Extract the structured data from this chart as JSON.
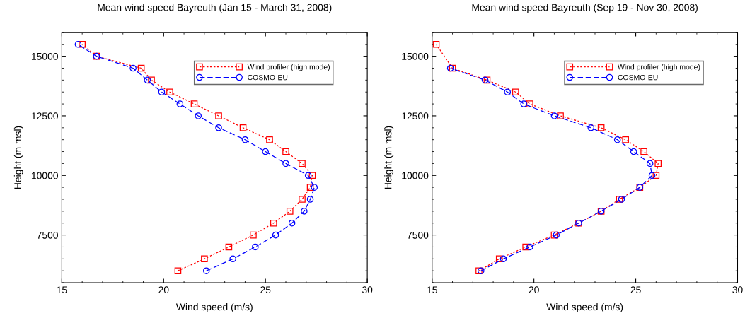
{
  "chart_data": [
    {
      "type": "line",
      "title": "Mean wind speed Bayreuth (Jan 15 - March 31, 2008)",
      "xlabel": "Wind speed (m/s)",
      "ylabel": "Height (m msl)",
      "xlim": [
        15,
        30
      ],
      "xticks": [
        15,
        20,
        25,
        30
      ],
      "ylim": [
        5500,
        16000
      ],
      "yticks": [
        7500,
        10000,
        12500,
        15000
      ],
      "grid": false,
      "legend": "top right",
      "series": [
        {
          "name": "Wind profiler (high mode)",
          "color": "#ff0000",
          "marker": "square",
          "line_style": "dotted",
          "x": [
            20.7,
            22.0,
            23.2,
            24.4,
            25.4,
            26.2,
            26.8,
            27.2,
            27.3,
            26.8,
            26.0,
            25.2,
            23.9,
            22.7,
            21.5,
            20.3,
            19.4,
            18.9,
            16.7,
            16.0
          ],
          "values": [
            6000,
            6500,
            7000,
            7500,
            8000,
            8500,
            9000,
            9500,
            10000,
            10500,
            11000,
            11500,
            12000,
            12500,
            13000,
            13500,
            14000,
            14500,
            15000,
            15500
          ]
        },
        {
          "name": "COSMO-EU",
          "color": "#0000ff",
          "marker": "circle",
          "line_style": "dashed",
          "x": [
            22.1,
            23.4,
            24.5,
            25.5,
            26.3,
            26.9,
            27.2,
            27.4,
            27.1,
            26.0,
            25.0,
            24.0,
            22.7,
            21.7,
            20.8,
            19.9,
            19.2,
            18.5,
            16.7,
            15.8
          ],
          "values": [
            6000,
            6500,
            7000,
            7500,
            8000,
            8500,
            9000,
            9500,
            10000,
            10500,
            11000,
            11500,
            12000,
            12500,
            13000,
            13500,
            14000,
            14500,
            15000,
            15500
          ]
        }
      ]
    },
    {
      "type": "line",
      "title": "Mean wind speed Bayreuth (Sep 19 - Nov 30, 2008)",
      "xlabel": "Wind speed (m/s)",
      "ylabel": "Height (m msl)",
      "xlim": [
        15,
        30
      ],
      "xticks": [
        15,
        20,
        25,
        30
      ],
      "ylim": [
        5500,
        16000
      ],
      "yticks": [
        7500,
        10000,
        12500,
        15000
      ],
      "grid": false,
      "legend": "top right",
      "series": [
        {
          "name": "Wind profiler (high mode)",
          "color": "#ff0000",
          "marker": "square",
          "line_style": "dotted",
          "x": [
            17.3,
            18.3,
            19.6,
            21.0,
            22.2,
            23.3,
            24.2,
            25.2,
            26.0,
            26.1,
            25.4,
            24.5,
            23.3,
            21.3,
            19.8,
            19.1,
            17.7,
            16.0,
            15.2
          ],
          "values": [
            6000,
            6500,
            7000,
            7500,
            8000,
            8500,
            9000,
            9500,
            10000,
            10500,
            11000,
            11500,
            12000,
            12500,
            13000,
            13500,
            14000,
            14500,
            15500
          ]
        },
        {
          "name": "COSMO-EU",
          "color": "#0000ff",
          "marker": "circle",
          "line_style": "dashed",
          "x": [
            17.4,
            18.5,
            19.8,
            21.1,
            22.2,
            23.3,
            24.3,
            25.2,
            25.8,
            25.7,
            24.9,
            24.1,
            22.8,
            21.0,
            19.5,
            18.7,
            17.6,
            15.9
          ],
          "values": [
            6000,
            6500,
            7000,
            7500,
            8000,
            8500,
            9000,
            9500,
            10000,
            10500,
            11000,
            11500,
            12000,
            12500,
            13000,
            13500,
            14000,
            14500
          ]
        }
      ]
    }
  ]
}
